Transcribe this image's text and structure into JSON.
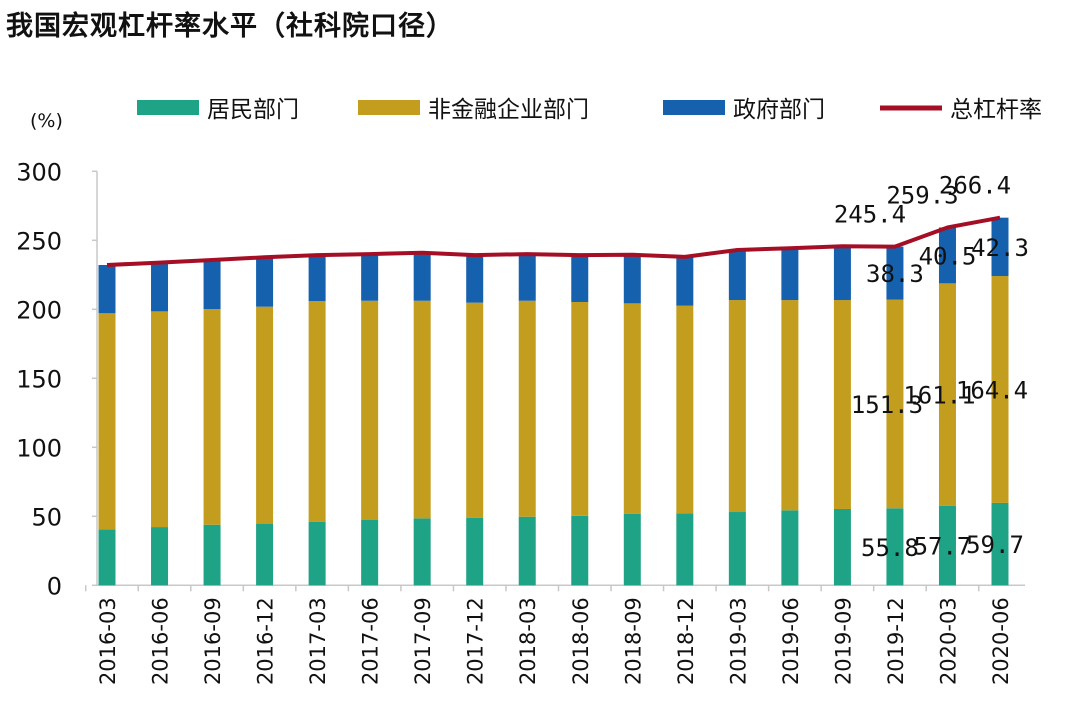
{
  "title": "我国宏观杠杆率水平（社科院口径）",
  "unit_label": "(%)",
  "chart_data": {
    "type": "bar",
    "stacked": true,
    "title": "我国宏观杠杆率水平（社科院口径）",
    "ylabel": "(%)",
    "ylim": [
      0,
      300
    ],
    "yticks": [
      0,
      50,
      100,
      150,
      200,
      250,
      300
    ],
    "grid": false,
    "legend_position": "top",
    "categories": [
      "2016-03",
      "2016-06",
      "2016-09",
      "2016-12",
      "2017-03",
      "2017-06",
      "2017-09",
      "2017-12",
      "2018-03",
      "2018-06",
      "2018-09",
      "2018-12",
      "2019-03",
      "2019-06",
      "2019-09",
      "2019-12",
      "2020-03",
      "2020-06"
    ],
    "series": [
      {
        "name": "居民部门",
        "type": "bar",
        "color": "#1fa386",
        "values": [
          40.6,
          42.2,
          43.9,
          44.7,
          46.1,
          47.6,
          48.5,
          49.0,
          49.7,
          50.4,
          51.9,
          52.2,
          53.1,
          54.3,
          55.3,
          55.8,
          57.7,
          59.7
        ]
      },
      {
        "name": "非金融企业部门",
        "type": "bar",
        "color": "#c39e1e",
        "values": [
          156.5,
          156.3,
          156.3,
          157.2,
          159.9,
          158.6,
          157.7,
          155.8,
          156.5,
          154.9,
          152.4,
          150.4,
          153.6,
          152.4,
          151.4,
          151.3,
          161.1,
          164.4
        ]
      },
      {
        "name": "政府部门",
        "type": "bar",
        "color": "#1561ae",
        "values": [
          35.0,
          35.3,
          35.5,
          35.8,
          33.3,
          33.8,
          34.8,
          34.5,
          33.8,
          34.0,
          35.2,
          35.4,
          36.3,
          37.5,
          39.0,
          38.3,
          40.5,
          42.3
        ]
      },
      {
        "name": "总杠杆率",
        "type": "line",
        "color": "#a50f25",
        "values": [
          232.1,
          233.8,
          235.7,
          237.7,
          239.3,
          240.0,
          241.0,
          239.3,
          240.0,
          239.3,
          239.5,
          238.0,
          243.0,
          244.2,
          245.7,
          245.4,
          259.3,
          266.4
        ]
      }
    ],
    "data_labels": [
      {
        "category": "2019-12",
        "values": [
          "55.8",
          "151.3",
          "38.3",
          "245.4"
        ]
      },
      {
        "category": "2020-03",
        "values": [
          "57.7",
          "161.1",
          "40.5",
          "259.3"
        ]
      },
      {
        "category": "2020-06",
        "values": [
          "59.7",
          "164.4",
          "42.3",
          "266.4"
        ]
      }
    ]
  }
}
